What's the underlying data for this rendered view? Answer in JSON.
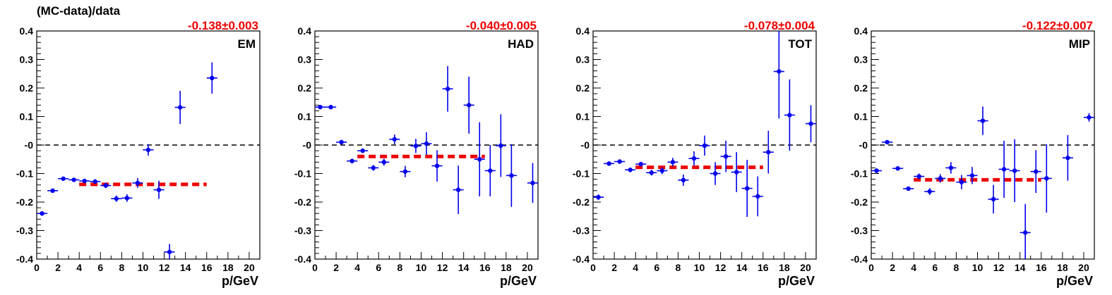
{
  "figure": {
    "ylabel": "(MC-data)/data"
  },
  "colors": {
    "points": "#0000ee",
    "fit": "#ee0000",
    "fit_label": "#ee0000",
    "reference": "#000000"
  },
  "chart_data": [
    {
      "type": "scatter",
      "panel_label": "EM",
      "fit_label": "-0.138±0.003",
      "xlabel": "p/GeV",
      "xlim": [
        0,
        21
      ],
      "ylim": [
        -0.4,
        0.4
      ],
      "x_ticks": [
        "0",
        "2",
        "4",
        "6",
        "8",
        "10",
        "12",
        "14",
        "16",
        "18",
        "20"
      ],
      "y_ticks": [
        "-0.4",
        "-0.3",
        "-0.2",
        "-0.1",
        "-0",
        "0.1",
        "0.2",
        "0.3",
        "0.4"
      ],
      "reference_line": 0,
      "fit": {
        "value": -0.138,
        "x_range": [
          4,
          16
        ]
      },
      "series": [
        {
          "x": [
            0.5,
            1.5,
            2.5,
            3.5,
            4.5,
            5.5,
            6.5,
            7.5,
            8.5,
            9.5,
            10.5,
            11.5,
            12.5,
            13.5,
            16.5
          ],
          "y": [
            -0.24,
            -0.16,
            -0.118,
            -0.122,
            -0.126,
            -0.128,
            -0.142,
            -0.188,
            -0.186,
            -0.133,
            -0.017,
            -0.157,
            -0.375,
            0.132,
            0.235
          ],
          "yerr": [
            0.005,
            0.006,
            0.006,
            0.006,
            0.007,
            0.008,
            0.009,
            0.011,
            0.013,
            0.017,
            0.02,
            0.032,
            0.028,
            0.058,
            0.055
          ],
          "xerr": 0.5
        }
      ]
    },
    {
      "type": "scatter",
      "panel_label": "HAD",
      "fit_label": "-0.040±0.005",
      "xlabel": "p/GeV",
      "xlim": [
        0,
        21
      ],
      "ylim": [
        -0.4,
        0.4
      ],
      "x_ticks": [
        "0",
        "2",
        "4",
        "6",
        "8",
        "10",
        "12",
        "14",
        "16",
        "18",
        "20"
      ],
      "y_ticks": [
        "-0.4",
        "-0.3",
        "-0.2",
        "-0.1",
        "-0",
        "0.1",
        "0.2",
        "0.3",
        "0.4"
      ],
      "reference_line": 0,
      "fit": {
        "value": -0.04,
        "x_range": [
          4,
          16
        ]
      },
      "series": [
        {
          "x": [
            0.5,
            1.5,
            2.5,
            3.5,
            4.5,
            5.5,
            6.5,
            7.5,
            8.5,
            9.5,
            10.5,
            11.5,
            12.5,
            13.5,
            14.5,
            15.5,
            16.5,
            17.5,
            18.5,
            20.5
          ],
          "y": [
            0.133,
            0.133,
            0.01,
            -0.056,
            -0.02,
            -0.08,
            -0.06,
            0.02,
            -0.093,
            -0.003,
            0.005,
            -0.073,
            0.197,
            -0.157,
            0.14,
            -0.05,
            -0.09,
            -0.002,
            -0.107,
            -0.133
          ],
          "yerr": [
            0.005,
            0.005,
            0.008,
            0.006,
            0.008,
            0.01,
            0.012,
            0.017,
            0.02,
            0.025,
            0.04,
            0.055,
            0.08,
            0.085,
            0.1,
            0.13,
            0.09,
            0.11,
            0.11,
            0.07
          ],
          "xerr": 0.5
        }
      ]
    },
    {
      "type": "scatter",
      "panel_label": "TOT",
      "fit_label": "-0.078±0.004",
      "xlabel": "p/GeV",
      "xlim": [
        0,
        21
      ],
      "ylim": [
        -0.4,
        0.4
      ],
      "x_ticks": [
        "0",
        "2",
        "4",
        "6",
        "8",
        "10",
        "12",
        "14",
        "16",
        "18",
        "20"
      ],
      "y_ticks": [
        "-0.4",
        "-0.3",
        "-0.2",
        "-0.1",
        "-0",
        "0.1",
        "0.2",
        "0.3",
        "0.4"
      ],
      "reference_line": 0,
      "fit": {
        "value": -0.078,
        "x_range": [
          4,
          16
        ]
      },
      "series": [
        {
          "x": [
            0.5,
            1.5,
            2.5,
            3.5,
            4.5,
            5.5,
            6.5,
            7.5,
            8.5,
            9.5,
            10.5,
            11.5,
            12.5,
            13.5,
            14.5,
            15.5,
            16.5,
            17.5,
            18.5,
            20.5
          ],
          "y": [
            -0.183,
            -0.065,
            -0.058,
            -0.087,
            -0.067,
            -0.097,
            -0.09,
            -0.06,
            -0.123,
            -0.047,
            -0.002,
            -0.1,
            -0.04,
            -0.095,
            -0.152,
            -0.18,
            -0.025,
            0.258,
            0.105,
            0.075
          ],
          "yerr": [
            0.01,
            0.006,
            0.006,
            0.008,
            0.008,
            0.01,
            0.012,
            0.015,
            0.02,
            0.025,
            0.035,
            0.04,
            0.055,
            0.07,
            0.1,
            0.07,
            0.075,
            0.165,
            0.125,
            0.065
          ],
          "xerr": 0.5
        }
      ]
    },
    {
      "type": "scatter",
      "panel_label": "MIP",
      "fit_label": "-0.122±0.007",
      "xlabel": "p/GeV",
      "xlim": [
        0,
        21
      ],
      "ylim": [
        -0.4,
        0.4
      ],
      "x_ticks": [
        "0",
        "2",
        "4",
        "6",
        "8",
        "10",
        "12",
        "14",
        "16",
        "18",
        "20"
      ],
      "y_ticks": [
        "-0.4",
        "-0.3",
        "-0.2",
        "-0.1",
        "-0",
        "0.1",
        "0.2",
        "0.3",
        "0.4"
      ],
      "reference_line": 0,
      "fit": {
        "value": -0.122,
        "x_range": [
          4,
          16
        ]
      },
      "series": [
        {
          "x": [
            0.5,
            1.5,
            2.5,
            3.5,
            4.5,
            5.5,
            6.5,
            7.5,
            8.5,
            9.5,
            10.5,
            11.5,
            12.5,
            13.5,
            14.5,
            15.5,
            16.5,
            18.5,
            20.5
          ],
          "y": [
            -0.09,
            0.01,
            -0.082,
            -0.153,
            -0.11,
            -0.163,
            -0.117,
            -0.08,
            -0.13,
            -0.107,
            0.085,
            -0.19,
            -0.085,
            -0.09,
            -0.307,
            -0.093,
            -0.117,
            -0.045,
            0.097
          ],
          "yerr": [
            0.008,
            0.006,
            0.006,
            0.007,
            0.01,
            0.012,
            0.015,
            0.02,
            0.025,
            0.03,
            0.05,
            0.05,
            0.1,
            0.11,
            0.1,
            0.075,
            0.12,
            0.08,
            0.015
          ],
          "xerr": 0.5
        }
      ]
    }
  ]
}
